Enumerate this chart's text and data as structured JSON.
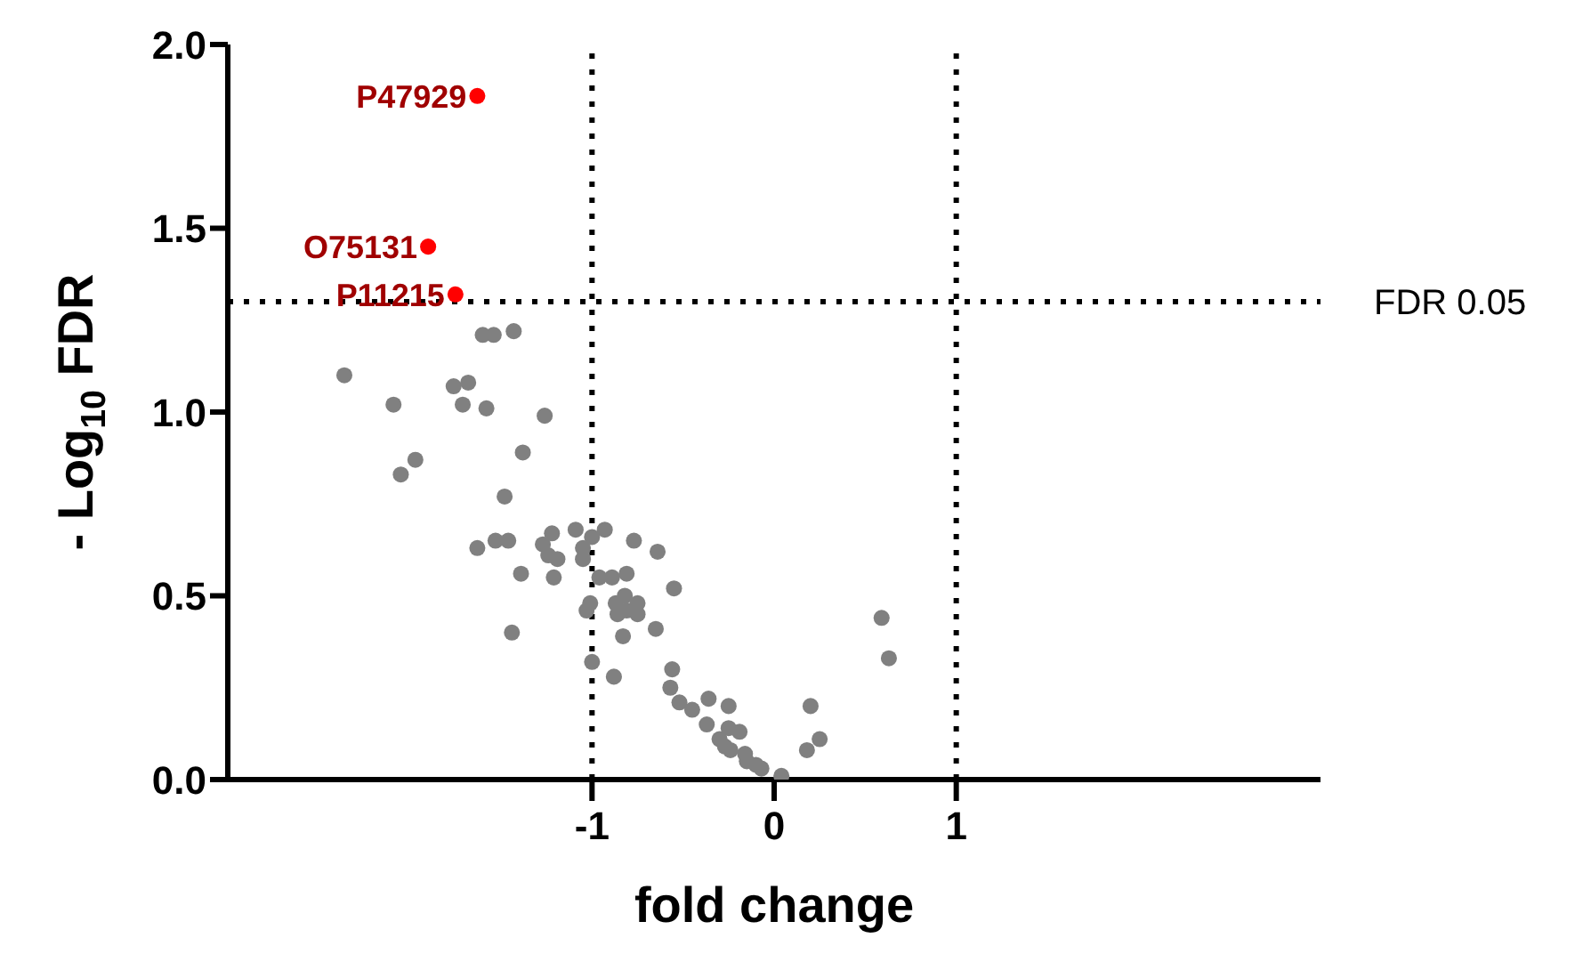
{
  "chart_data": {
    "type": "scatter",
    "xlabel": "fold change",
    "ylabel": "- Log$_{10}$ FDR",
    "xlim": [
      -3,
      3
    ],
    "xticks": [
      -1,
      0,
      1
    ],
    "ylim": [
      0,
      2
    ],
    "yticks": [
      {
        "value": 0,
        "label": "0.0"
      },
      {
        "value": 0.5,
        "label": "0.5"
      },
      {
        "value": 1,
        "label": "1.0"
      },
      {
        "value": 1.5,
        "label": "1.5"
      },
      {
        "value": 2,
        "label": "2.0"
      }
    ],
    "marker": "circle",
    "ref_lines": [
      {
        "axis": "x",
        "value": -1,
        "label": null,
        "line_style": "dotted",
        "color": "#000000"
      },
      {
        "axis": "x",
        "value": 1,
        "label": null,
        "line_style": "dotted",
        "color": "#000000"
      },
      {
        "axis": "y",
        "value": 1.3,
        "label": "FDR 0.05",
        "line_style": "dotted",
        "color": "#000000"
      }
    ],
    "annotations": [
      {
        "text": "P47929",
        "x": -1.63,
        "y": 1.86
      },
      {
        "text": "O75131",
        "x": -1.9,
        "y": 1.45
      },
      {
        "text": "P11215",
        "x": -1.75,
        "y": 1.32
      }
    ],
    "series": [
      {
        "color": "#808080",
        "x": [
          -2.36,
          -2.09,
          -1.97,
          -2.05,
          -1.76,
          -1.68,
          -1.71,
          -1.58,
          -1.6,
          -1.54,
          -1.43,
          -1.26,
          -1.38,
          -1.48,
          -1.63,
          -1.53,
          -1.46,
          -1.39,
          -1.44,
          -1.27,
          -1.22,
          -1.24,
          -1.19,
          -1.21,
          -1.09,
          -1.05,
          -1.0,
          -0.93,
          -1.05,
          -0.77,
          -0.64,
          -0.96,
          -0.89,
          -0.81,
          -0.55,
          -1.01,
          -1.03,
          -0.82,
          -0.87,
          -0.75,
          -0.81,
          -0.86,
          -0.75,
          -0.83,
          -0.65,
          -1.0,
          -0.88,
          -0.56,
          -0.57,
          -0.52,
          -0.45,
          -0.36,
          -0.25,
          -0.37,
          -0.25,
          -0.19,
          -0.3,
          -0.27,
          -0.24,
          -0.16,
          -0.15,
          -0.1,
          -0.07,
          0.04,
          0.2,
          0.18,
          0.25,
          0.59,
          0.63
        ],
        "values": [
          1.1,
          1.02,
          0.87,
          0.83,
          1.07,
          1.08,
          1.02,
          1.01,
          1.21,
          1.21,
          1.22,
          0.99,
          0.89,
          0.77,
          0.63,
          0.65,
          0.65,
          0.56,
          0.4,
          0.64,
          0.67,
          0.61,
          0.6,
          0.55,
          0.68,
          0.63,
          0.66,
          0.68,
          0.6,
          0.65,
          0.62,
          0.55,
          0.55,
          0.56,
          0.52,
          0.48,
          0.46,
          0.5,
          0.48,
          0.48,
          0.46,
          0.45,
          0.45,
          0.39,
          0.41,
          0.32,
          0.28,
          0.3,
          0.25,
          0.21,
          0.19,
          0.22,
          0.2,
          0.15,
          0.14,
          0.13,
          0.11,
          0.09,
          0.08,
          0.07,
          0.05,
          0.04,
          0.03,
          0.01,
          0.2,
          0.08,
          0.11,
          0.44,
          0.33
        ]
      },
      {
        "color": "#ff0000",
        "x": [
          -1.63,
          -1.9,
          -1.75
        ],
        "values": [
          1.86,
          1.45,
          1.32
        ]
      }
    ]
  }
}
